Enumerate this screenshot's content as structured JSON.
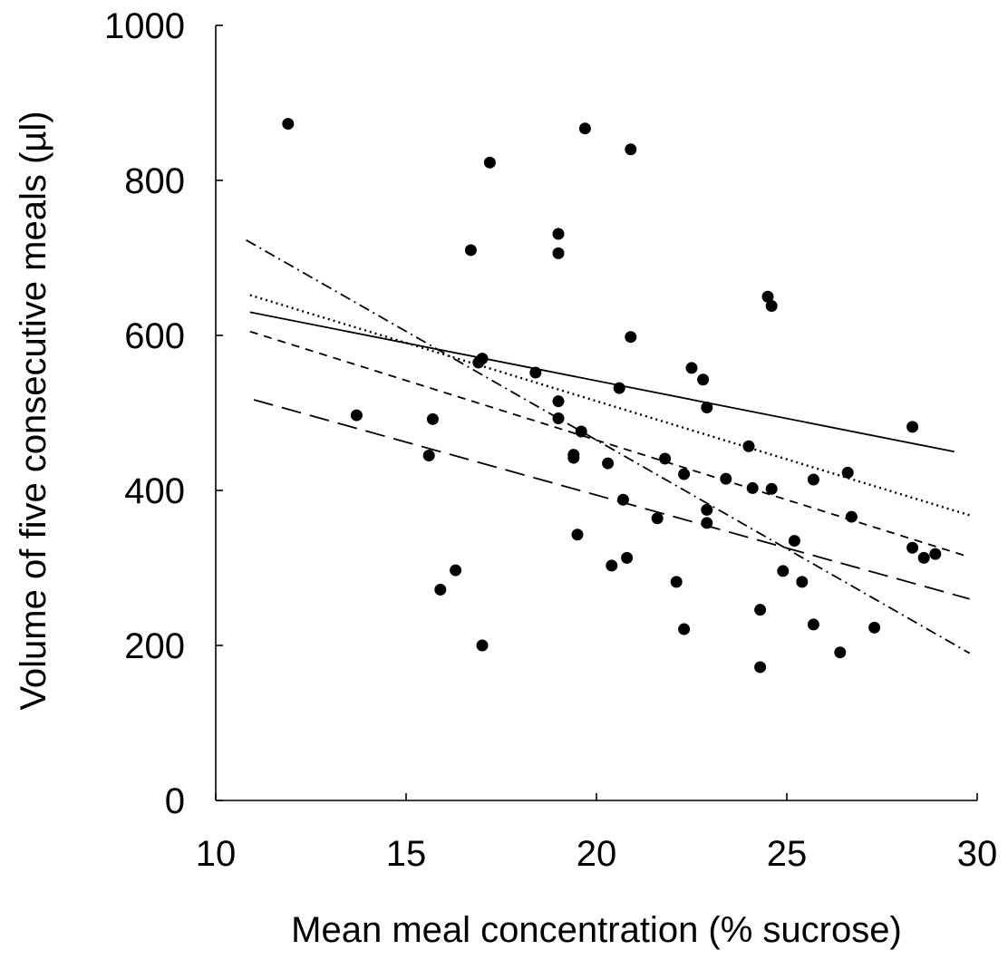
{
  "chart_data": {
    "type": "scatter",
    "xlabel": "Mean meal concentration (% sucrose)",
    "ylabel": "Volume of five consecutive meals (µl)",
    "xlim": [
      10,
      30
    ],
    "ylim": [
      0,
      1000
    ],
    "x_ticks": [
      10,
      15,
      20,
      25,
      30
    ],
    "y_ticks": [
      0,
      200,
      400,
      600,
      800,
      1000
    ],
    "x_tick_labels": [
      "10",
      "15",
      "20",
      "25",
      "30"
    ],
    "y_tick_labels": [
      "0",
      "200",
      "400",
      "600",
      "800",
      "1000"
    ],
    "grid": false,
    "legend": "none",
    "series": [
      {
        "type": "scatter",
        "marker": "filled-circle",
        "color": "#000000",
        "points": [
          [
            11.9,
            873
          ],
          [
            13.7,
            497
          ],
          [
            15.6,
            445
          ],
          [
            15.7,
            492
          ],
          [
            15.9,
            272
          ],
          [
            16.3,
            297
          ],
          [
            16.7,
            710
          ],
          [
            16.9,
            565
          ],
          [
            17.0,
            570
          ],
          [
            17.0,
            200
          ],
          [
            17.2,
            823
          ],
          [
            18.4,
            552
          ],
          [
            19.0,
            706
          ],
          [
            19.0,
            731
          ],
          [
            19.0,
            515
          ],
          [
            19.0,
            493
          ],
          [
            19.4,
            442
          ],
          [
            19.4,
            446
          ],
          [
            19.5,
            343
          ],
          [
            19.6,
            476
          ],
          [
            19.7,
            867
          ],
          [
            20.3,
            435
          ],
          [
            20.4,
            303
          ],
          [
            20.6,
            532
          ],
          [
            20.7,
            388
          ],
          [
            20.8,
            313
          ],
          [
            20.9,
            598
          ],
          [
            20.9,
            840
          ],
          [
            21.6,
            364
          ],
          [
            21.8,
            441
          ],
          [
            22.1,
            282
          ],
          [
            22.3,
            221
          ],
          [
            22.3,
            421
          ],
          [
            22.5,
            558
          ],
          [
            22.8,
            543
          ],
          [
            22.9,
            507
          ],
          [
            22.9,
            375
          ],
          [
            22.9,
            358
          ],
          [
            23.4,
            415
          ],
          [
            24.0,
            457
          ],
          [
            24.1,
            403
          ],
          [
            24.3,
            246
          ],
          [
            24.3,
            172
          ],
          [
            24.5,
            650
          ],
          [
            24.6,
            638
          ],
          [
            24.6,
            402
          ],
          [
            24.9,
            296
          ],
          [
            25.2,
            335
          ],
          [
            25.4,
            282
          ],
          [
            25.7,
            227
          ],
          [
            25.7,
            414
          ],
          [
            26.4,
            191
          ],
          [
            26.6,
            423
          ],
          [
            26.7,
            366
          ],
          [
            27.3,
            223
          ],
          [
            28.3,
            482
          ],
          [
            28.3,
            326
          ],
          [
            28.6,
            313
          ],
          [
            28.9,
            318
          ]
        ]
      },
      {
        "type": "line",
        "style": "solid",
        "x": [
          10.9,
          29.4
        ],
        "y": [
          630,
          450
        ]
      },
      {
        "type": "line",
        "style": "dotted",
        "x": [
          10.9,
          29.8
        ],
        "y": [
          652,
          368
        ]
      },
      {
        "type": "line",
        "style": "dashed",
        "x": [
          10.9,
          29.8
        ],
        "y": [
          605,
          314
        ]
      },
      {
        "type": "line",
        "style": "long-dashed",
        "x": [
          11.0,
          29.8
        ],
        "y": [
          517,
          260
        ]
      },
      {
        "type": "line",
        "style": "dash-dot",
        "x": [
          10.8,
          29.8
        ],
        "y": [
          723,
          190
        ]
      }
    ]
  }
}
